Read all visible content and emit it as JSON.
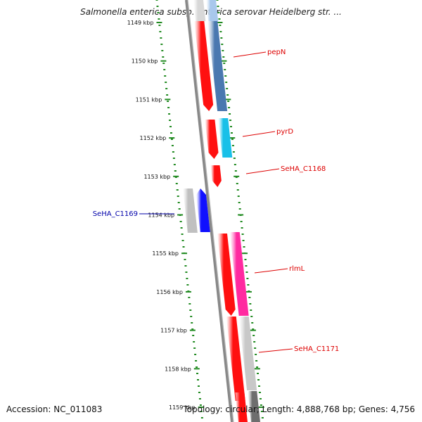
{
  "title": "Salmonella enterica subsp. enterica serovar Heidelberg str. ...",
  "accession": "Accession: NC_011083",
  "topology": "Topology: circular; Length: 4,888,768 bp; Genes: 4,756",
  "colors": {
    "forward_gene": "#ff1010",
    "reverse_gene": "#1010ff",
    "label_red": "#dd0000",
    "label_blue": "#0000aa",
    "tick": "#228b22",
    "axis": "#888888"
  },
  "ticks": [
    "1149 kbp",
    "1150 kbp",
    "1151 kbp",
    "1152 kbp",
    "1153 kbp",
    "1154 kbp",
    "1155 kbp",
    "1156 kbp",
    "1157 kbp",
    "1158 kbp",
    "1159 kbp"
  ],
  "genes": [
    {
      "name": "pepN",
      "strand": "+",
      "label_color": "red",
      "cog_color": "#4a78b0"
    },
    {
      "name": "pyrD",
      "strand": "+",
      "label_color": "red",
      "cog_color": "#19c0e8"
    },
    {
      "name": "SeHA_C1168",
      "strand": "+",
      "label_color": "red",
      "cog_color": ""
    },
    {
      "name": "SeHA_C1169",
      "strand": "-",
      "label_color": "blue",
      "cog_color": "#c0c0c0"
    },
    {
      "name": "rlmL",
      "strand": "+",
      "label_color": "red",
      "cog_color": "#ff2aa0"
    },
    {
      "name": "SeHA_C1171",
      "strand": "+",
      "label_color": "red",
      "cog_color": "#c8c8c8"
    }
  ]
}
